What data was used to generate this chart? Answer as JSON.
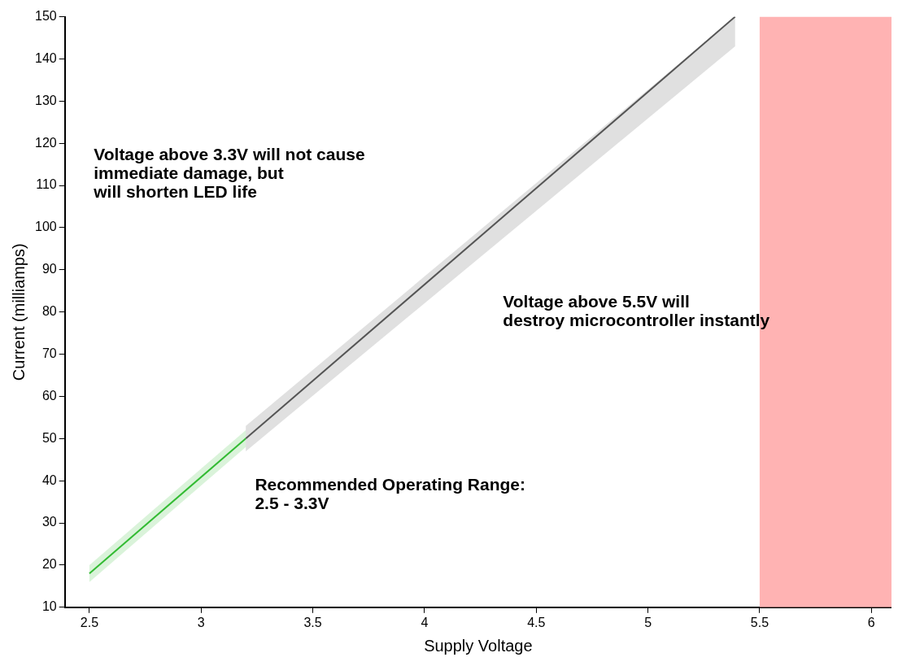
{
  "chart_data": {
    "type": "line",
    "xlabel": "Supply Voltage",
    "ylabel": "Current (milliamps)",
    "xlim": [
      2.39,
      6.09
    ],
    "ylim": [
      10,
      150
    ],
    "xticks": [
      2.5,
      3,
      3.5,
      4,
      4.5,
      5,
      5.5,
      6
    ],
    "yticks": [
      10,
      20,
      30,
      40,
      50,
      60,
      70,
      80,
      90,
      100,
      110,
      120,
      130,
      140,
      150
    ],
    "grid": false,
    "legend": false,
    "marker": "none",
    "line_style": "solid",
    "series": [
      {
        "color": "#33bb33",
        "x": [
          2.5,
          3.2
        ],
        "values": [
          18,
          50
        ],
        "lower": [
          16,
          48
        ],
        "upper": [
          20,
          52
        ]
      },
      {
        "color": "#555555",
        "x": [
          3.2,
          5.39
        ],
        "values": [
          50,
          150
        ],
        "lower": [
          47,
          143
        ],
        "upper": [
          53,
          150
        ]
      }
    ],
    "bands": [
      {
        "axis": "x",
        "from": 5.5,
        "to": 6.09,
        "color": "#ffb3b3"
      }
    ],
    "annotations": [
      "Voltage above 3.3V will not cause\nimmediate damage, but\nwill shorten LED life",
      "Voltage above 5.5V will\ndestroy microcontroller instantly",
      "Recommended Operating Range:\n2.5 - 3.3V"
    ]
  }
}
